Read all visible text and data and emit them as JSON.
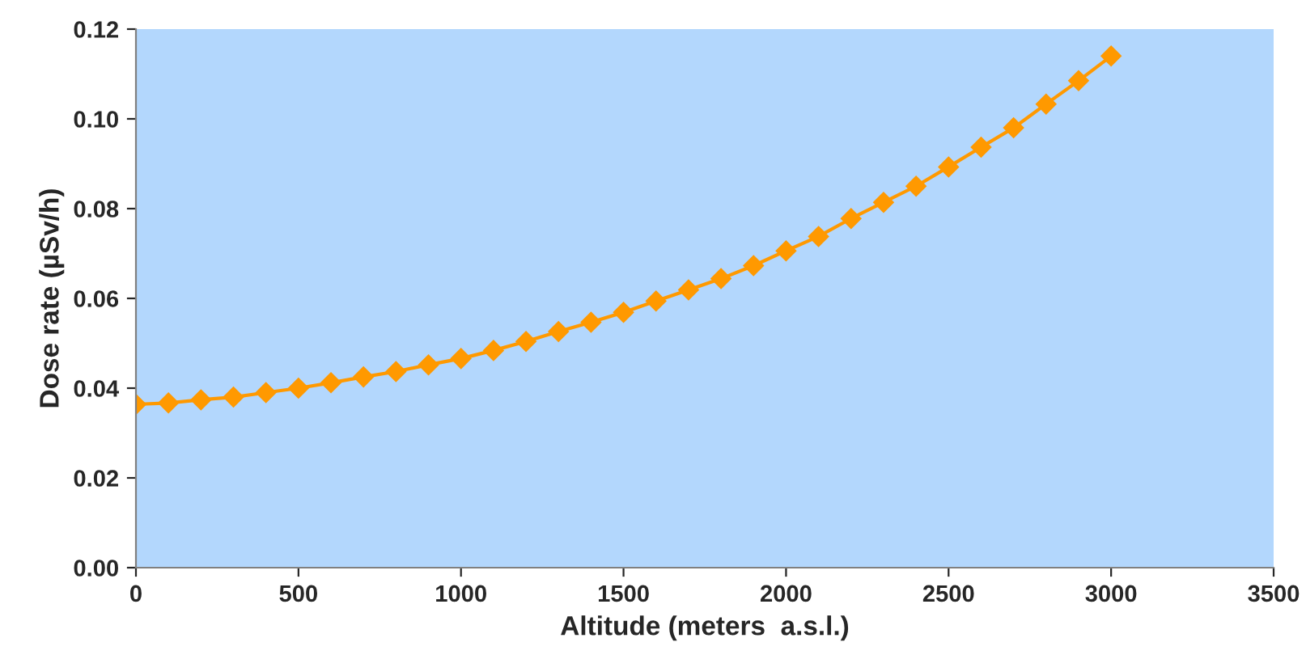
{
  "chart_data": {
    "type": "line",
    "xlabel": "Altitude (meters  a.s.l.)",
    "ylabel": "Dose rate (µSv/h)",
    "x": [
      0,
      100,
      200,
      300,
      400,
      500,
      600,
      700,
      800,
      900,
      1000,
      1100,
      1200,
      1300,
      1400,
      1500,
      1600,
      1700,
      1800,
      1900,
      2000,
      2100,
      2200,
      2300,
      2400,
      2500,
      2600,
      2700,
      2800,
      2900,
      3000
    ],
    "series": [
      {
        "color": "#ff9900",
        "values": [
          0.0364,
          0.0367,
          0.0374,
          0.038,
          0.039,
          0.04,
          0.0412,
          0.0425,
          0.0437,
          0.0452,
          0.0466,
          0.0484,
          0.0504,
          0.0526,
          0.0547,
          0.0569,
          0.0594,
          0.0619,
          0.0644,
          0.0673,
          0.0706,
          0.0738,
          0.0778,
          0.0814,
          0.085,
          0.0893,
          0.0937,
          0.098,
          0.1033,
          0.1085,
          0.114
        ]
      }
    ],
    "xlim": [
      0,
      3500
    ],
    "xticks": [
      0,
      500,
      1000,
      1500,
      2000,
      2500,
      3000,
      3500
    ],
    "ylim": [
      0,
      0.12
    ],
    "yticks": [
      {
        "value": 0,
        "label": "0.00"
      },
      {
        "value": 0.02,
        "label": "0.02"
      },
      {
        "value": 0.04,
        "label": "0.04"
      },
      {
        "value": 0.06,
        "label": "0.06"
      },
      {
        "value": 0.08,
        "label": "0.08"
      },
      {
        "value": 0.1,
        "label": "0.10"
      },
      {
        "value": 0.12,
        "label": "0.12"
      }
    ],
    "marker": "diamond",
    "line_style": "solid",
    "grid": false,
    "legend": false
  }
}
